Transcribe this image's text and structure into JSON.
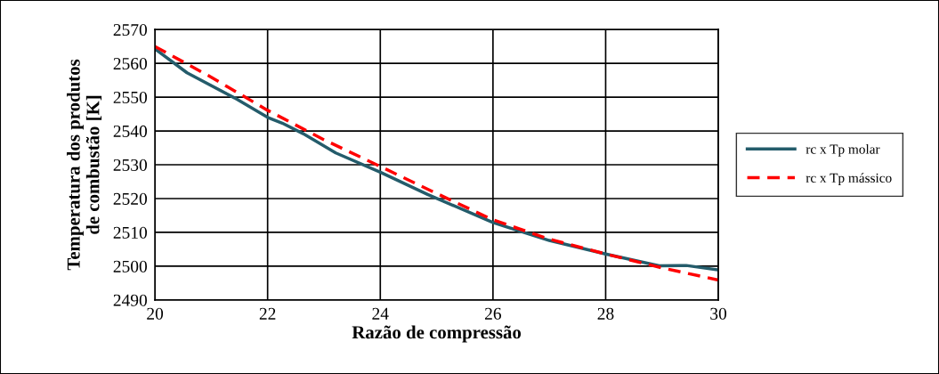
{
  "chart_data": {
    "type": "line",
    "xlabel": "Razão de compressão",
    "ylabel": "Temperatura dos produtos\nde combustão [K]",
    "xlim": [
      20,
      30
    ],
    "xticks": [
      20,
      22,
      24,
      26,
      28,
      30
    ],
    "ylim": [
      2490,
      2570
    ],
    "yticks": [
      2490,
      2500,
      2510,
      2520,
      2530,
      2540,
      2550,
      2560,
      2570
    ],
    "grid": true,
    "legend": "right",
    "marker": "none",
    "series": [
      {
        "name": "rc x Tp molar",
        "color": "#245c6b",
        "line_style": "solid",
        "x": [
          20,
          20.57,
          21.41,
          22,
          22.26,
          22.63,
          23.21,
          24,
          24.84,
          26,
          27,
          28,
          28.95,
          29.43,
          30
        ],
        "values": [
          2564.3,
          2557.2,
          2549.8,
          2544,
          2542.3,
          2539.2,
          2533.5,
          2527.8,
          2521.2,
          2512.9,
          2507.6,
          2503.6,
          2500.1,
          2500.2,
          2498.9
        ]
      },
      {
        "name": "rc x Tp mássico",
        "color": "#ff0000",
        "line_style": "dashed",
        "x": [
          20,
          21,
          22,
          23,
          24,
          25,
          26,
          27,
          28,
          29,
          30
        ],
        "values": [
          2565,
          2555.9,
          2546.1,
          2537.4,
          2529.5,
          2521.5,
          2513.7,
          2508,
          2503.6,
          2499.5,
          2495.9
        ]
      }
    ]
  }
}
